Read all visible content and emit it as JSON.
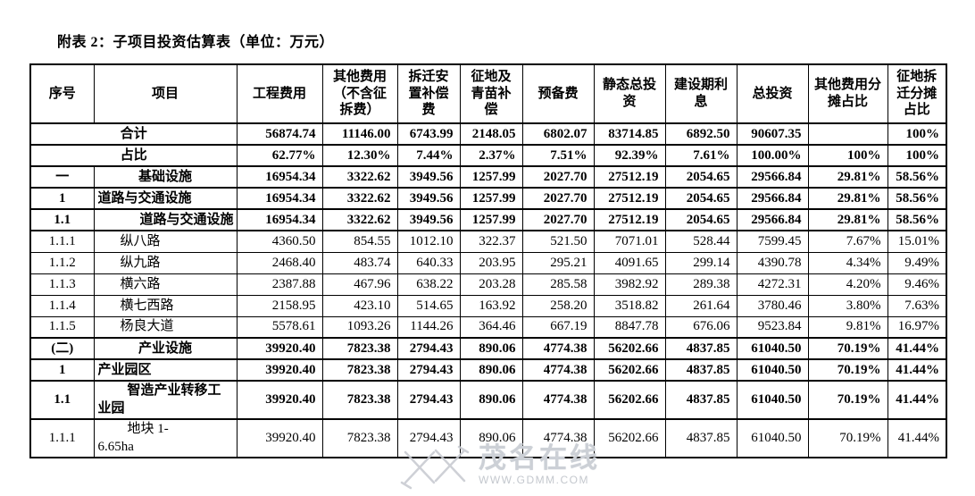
{
  "title": "附表 2：子项目投资估算表（单位：万元）",
  "watermark": {
    "text": "茂名在线",
    "url": "WWW.GDMM.COM"
  },
  "table": {
    "headers": [
      "序号",
      "项目",
      "工程费用",
      "其他费用（不含征拆费）",
      "拆迁安置补偿费",
      "征地及青苗补偿",
      "预备费",
      "静态总投资",
      "建设期利息",
      "总投资",
      "其他费用分摊占比",
      "征地拆迁分摊占比"
    ],
    "rows": [
      {
        "sn": "",
        "name": "合计",
        "merged": true,
        "bold": true,
        "align": "center",
        "values": [
          "56874.74",
          "11146.00",
          "6743.99",
          "2148.05",
          "6802.07",
          "83714.85",
          "6892.50",
          "90607.35",
          "",
          "100%"
        ]
      },
      {
        "sn": "",
        "name": "占比",
        "merged": true,
        "bold": true,
        "align": "center",
        "values": [
          "62.77%",
          "12.30%",
          "7.44%",
          "2.37%",
          "7.51%",
          "92.39%",
          "7.61%",
          "100.00%",
          "100%",
          "100%"
        ]
      },
      {
        "sn": "一",
        "name": "基础设施",
        "bold": true,
        "align": "center",
        "values": [
          "16954.34",
          "3322.62",
          "3949.56",
          "1257.99",
          "2027.70",
          "27512.19",
          "2054.65",
          "29566.84",
          "29.81%",
          "58.56%"
        ]
      },
      {
        "sn": "1",
        "name": "道路与交通设施",
        "bold": true,
        "align": "left",
        "values": [
          "16954.34",
          "3322.62",
          "3949.56",
          "1257.99",
          "2027.70",
          "27512.19",
          "2054.65",
          "29566.84",
          "29.81%",
          "58.56%"
        ]
      },
      {
        "sn": "1.1",
        "name": "道路与交通设施",
        "bold": true,
        "align": "right",
        "values": [
          "16954.34",
          "3322.62",
          "3949.56",
          "1257.99",
          "2027.70",
          "27512.19",
          "2054.65",
          "29566.84",
          "29.81%",
          "58.56%"
        ]
      },
      {
        "sn": "1.1.1",
        "name": "纵八路",
        "bold": false,
        "align": "indent",
        "values": [
          "4360.50",
          "854.55",
          "1012.10",
          "322.37",
          "521.50",
          "7071.01",
          "528.44",
          "7599.45",
          "7.67%",
          "15.01%"
        ]
      },
      {
        "sn": "1.1.2",
        "name": "纵九路",
        "bold": false,
        "align": "indent",
        "values": [
          "2468.40",
          "483.74",
          "640.33",
          "203.95",
          "295.21",
          "4091.65",
          "299.14",
          "4390.78",
          "4.34%",
          "9.49%"
        ]
      },
      {
        "sn": "1.1.3",
        "name": "横六路",
        "bold": false,
        "align": "indent",
        "values": [
          "2387.88",
          "467.96",
          "638.22",
          "203.28",
          "285.58",
          "3982.92",
          "289.38",
          "4272.31",
          "4.20%",
          "9.46%"
        ]
      },
      {
        "sn": "1.1.4",
        "name": "横七西路",
        "bold": false,
        "align": "indent",
        "values": [
          "2158.95",
          "423.10",
          "514.65",
          "163.92",
          "258.20",
          "3518.82",
          "261.64",
          "3780.46",
          "3.80%",
          "7.63%"
        ]
      },
      {
        "sn": "1.1.5",
        "name": "杨良大道",
        "bold": false,
        "align": "indent",
        "values": [
          "5578.61",
          "1093.26",
          "1144.26",
          "364.46",
          "667.19",
          "8847.78",
          "676.06",
          "9523.84",
          "9.81%",
          "16.97%"
        ]
      },
      {
        "sn": "(二)",
        "name": "产业设施",
        "bold": true,
        "align": "center",
        "values": [
          "39920.40",
          "7823.38",
          "2794.43",
          "890.06",
          "4774.38",
          "56202.66",
          "4837.85",
          "61040.50",
          "70.19%",
          "41.44%"
        ]
      },
      {
        "sn": "1",
        "name": "产业园区",
        "bold": true,
        "align": "left",
        "values": [
          "39920.40",
          "7823.38",
          "2794.43",
          "890.06",
          "4774.38",
          "56202.66",
          "4837.85",
          "61040.50",
          "70.19%",
          "41.44%"
        ]
      },
      {
        "sn": "1.1",
        "name": "智造产业转移工\n业园",
        "bold": true,
        "align": "windent",
        "values": [
          "39920.40",
          "7823.38",
          "2794.43",
          "890.06",
          "4774.38",
          "56202.66",
          "4837.85",
          "61040.50",
          "70.19%",
          "41.44%"
        ]
      },
      {
        "sn": "1.1.1",
        "name": "地块 1-\n6.65ha",
        "bold": false,
        "align": "windent",
        "values": [
          "39920.40",
          "7823.38",
          "2794.43",
          "890.06",
          "4774.38",
          "56202.66",
          "4837.85",
          "61040.50",
          "70.19%",
          "41.44%"
        ]
      }
    ]
  }
}
